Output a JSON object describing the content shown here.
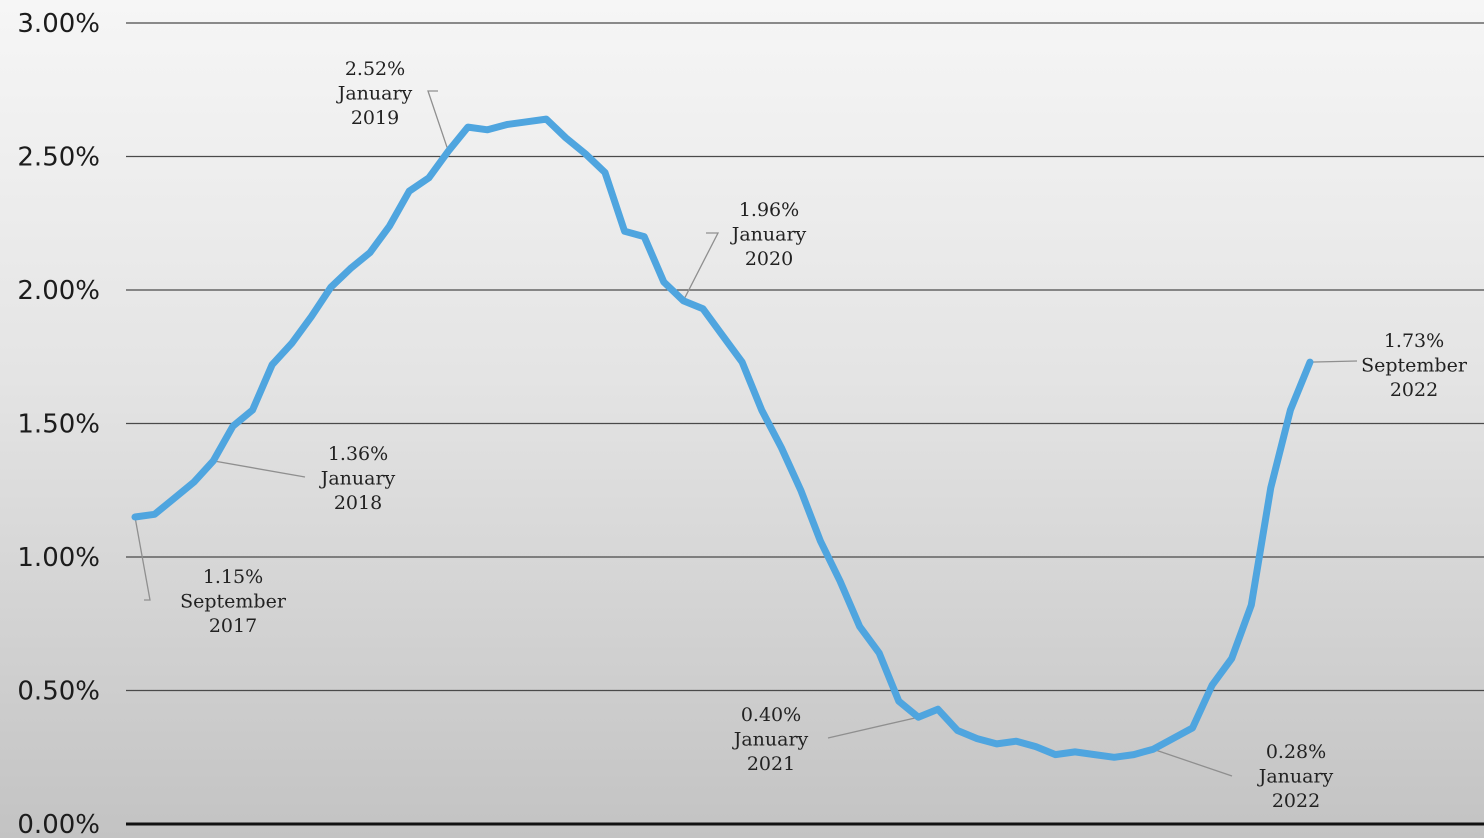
{
  "chart_data": {
    "type": "line",
    "title": "",
    "xlabel": "",
    "ylabel": "",
    "ylim": [
      0,
      0.03
    ],
    "y_ticks": [
      {
        "value": 0.0,
        "label": "0.00%"
      },
      {
        "value": 0.005,
        "label": "0.50%"
      },
      {
        "value": 0.01,
        "label": "1.00%"
      },
      {
        "value": 0.015,
        "label": "1.50%"
      },
      {
        "value": 0.02,
        "label": "2.00%"
      },
      {
        "value": 0.025,
        "label": "2.50%"
      },
      {
        "value": 0.03,
        "label": "3.00%"
      }
    ],
    "grid": true,
    "legend": "none",
    "line_color": "#4fa5df",
    "x": [
      "2017-09",
      "2017-10",
      "2017-11",
      "2017-12",
      "2018-01",
      "2018-02",
      "2018-03",
      "2018-04",
      "2018-05",
      "2018-06",
      "2018-07",
      "2018-08",
      "2018-09",
      "2018-10",
      "2018-11",
      "2018-12",
      "2019-01",
      "2019-02",
      "2019-03",
      "2019-04",
      "2019-05",
      "2019-06",
      "2019-07",
      "2019-08",
      "2019-09",
      "2019-10",
      "2019-11",
      "2019-12",
      "2020-01",
      "2020-02",
      "2020-03",
      "2020-04",
      "2020-05",
      "2020-06",
      "2020-07",
      "2020-08",
      "2020-09",
      "2020-10",
      "2020-11",
      "2020-12",
      "2021-01",
      "2021-02",
      "2021-03",
      "2021-04",
      "2021-05",
      "2021-06",
      "2021-07",
      "2021-08",
      "2021-09",
      "2021-10",
      "2021-11",
      "2021-12",
      "2022-01",
      "2022-02",
      "2022-03",
      "2022-04",
      "2022-05",
      "2022-06",
      "2022-07",
      "2022-08",
      "2022-09"
    ],
    "values": [
      0.0115,
      0.0116,
      0.0122,
      0.0128,
      0.0136,
      0.0149,
      0.0155,
      0.0172,
      0.018,
      0.019,
      0.0201,
      0.0208,
      0.0214,
      0.0224,
      0.0237,
      0.0242,
      0.0252,
      0.0261,
      0.026,
      0.0262,
      0.0263,
      0.0264,
      0.0257,
      0.0251,
      0.0244,
      0.0222,
      0.022,
      0.0203,
      0.0196,
      0.0193,
      0.0183,
      0.0173,
      0.0155,
      0.0141,
      0.0125,
      0.0106,
      0.0091,
      0.0074,
      0.0064,
      0.0046,
      0.004,
      0.0043,
      0.0035,
      0.0032,
      0.003,
      0.0031,
      0.0029,
      0.0026,
      0.0027,
      0.0026,
      0.0025,
      0.0026,
      0.0028,
      0.0032,
      0.0036,
      0.0052,
      0.0062,
      0.0082,
      0.0126,
      0.0155,
      0.0173
    ],
    "annotations": [
      {
        "point_index": 0,
        "value": "1.15%",
        "month": "September",
        "year": "2017"
      },
      {
        "point_index": 4,
        "value": "1.36%",
        "month": "January",
        "year": "2018"
      },
      {
        "point_index": 16,
        "value": "2.52%",
        "month": "January",
        "year": "2019"
      },
      {
        "point_index": 28,
        "value": "1.96%",
        "month": "January",
        "year": "2020"
      },
      {
        "point_index": 40,
        "value": "0.40%",
        "month": "January",
        "year": "2021"
      },
      {
        "point_index": 52,
        "value": "0.28%",
        "month": "January",
        "year": "2022"
      },
      {
        "point_index": 60,
        "value": "1.73%",
        "month": "September",
        "year": "2022"
      }
    ]
  }
}
